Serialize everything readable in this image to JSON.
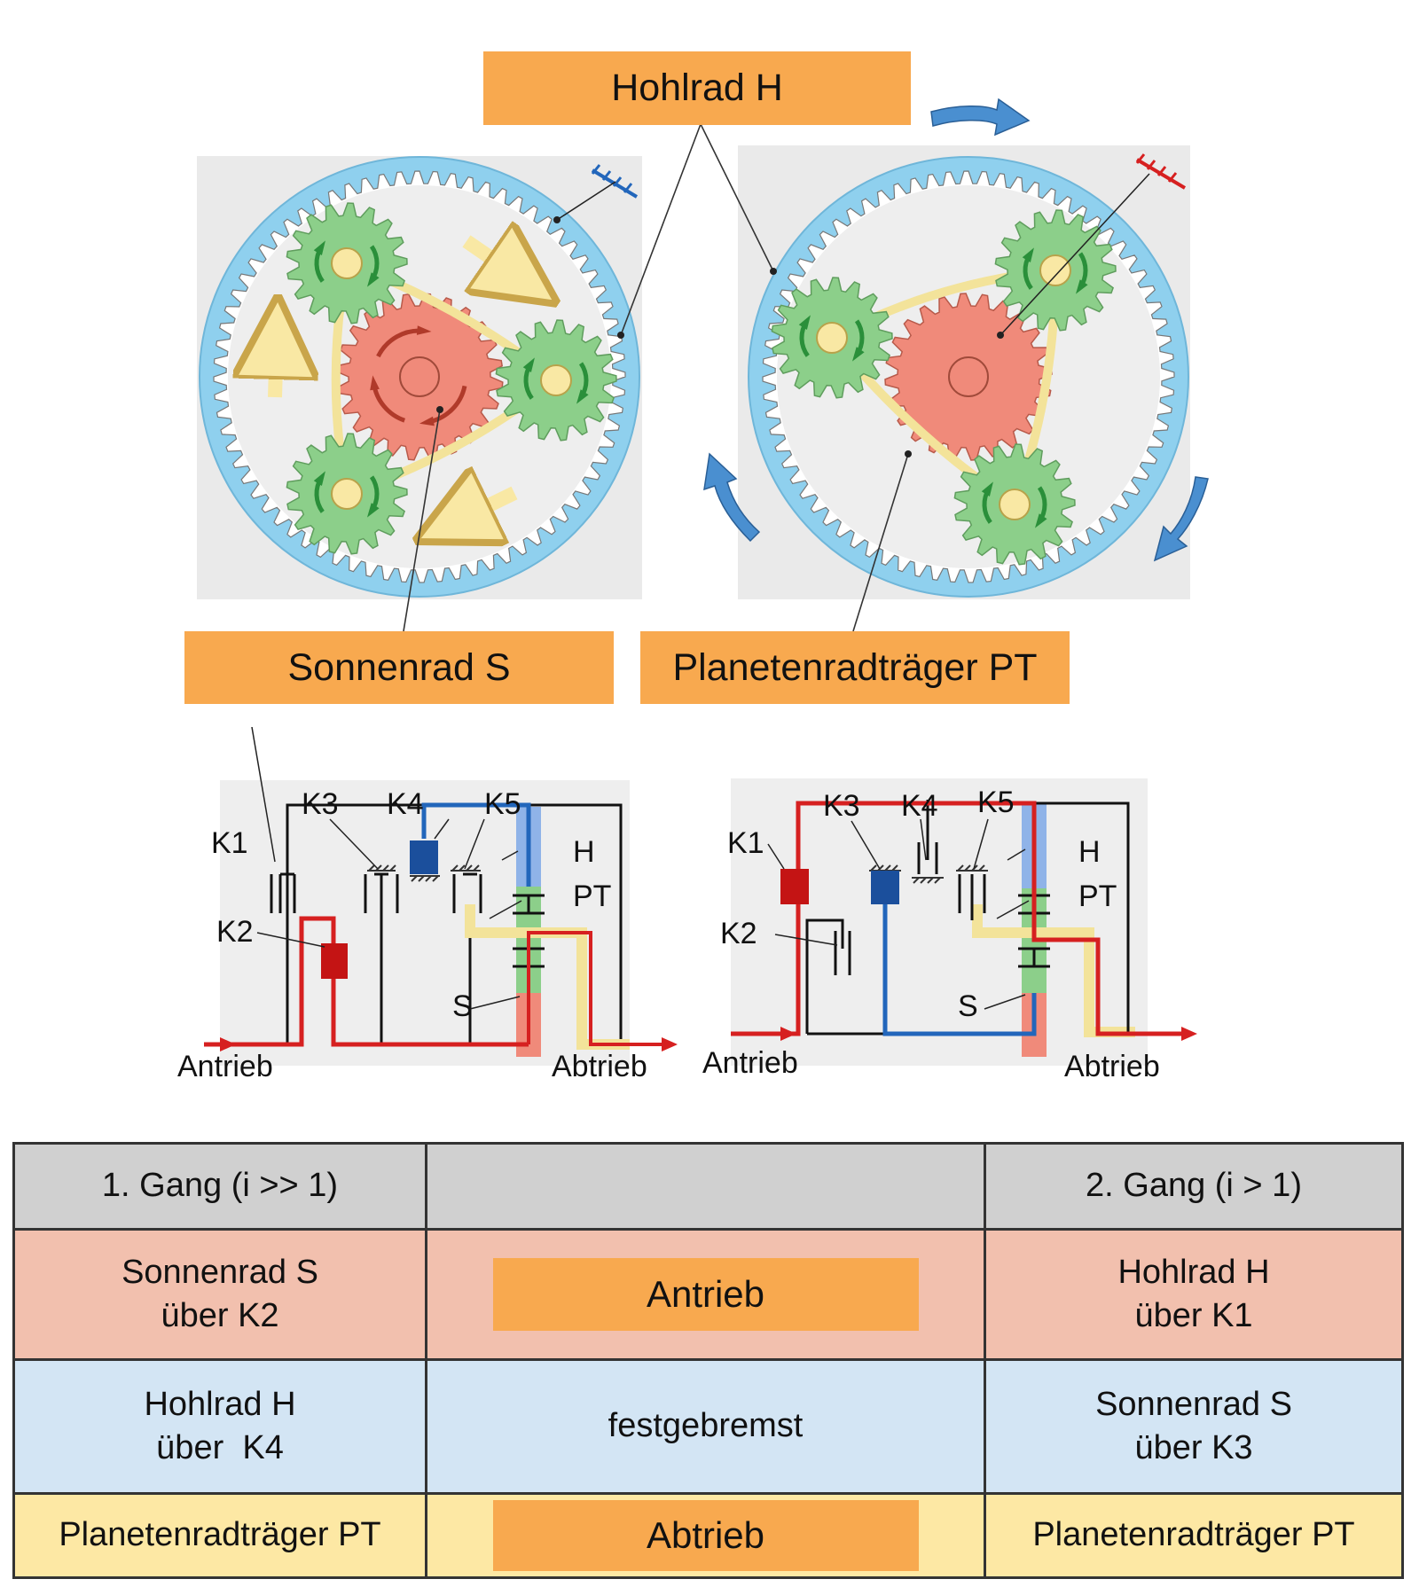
{
  "labels": {
    "hohlrad": "Hohlrad H",
    "sonnenrad": "Sonnenrad S",
    "planetentraeger": "Planetenradträger PT"
  },
  "schema_left": {
    "k1": "K1",
    "k2": "K2",
    "k3": "K3",
    "k4": "K4",
    "k5": "K5",
    "h": "H",
    "pt": "PT",
    "s": "S",
    "antrieb": "Antrieb",
    "abtrieb": "Abtrieb"
  },
  "schema_right": {
    "k1": "K1",
    "k2": "K2",
    "k3": "K3",
    "k4": "K4",
    "k5": "K5",
    "h": "H",
    "pt": "PT",
    "s": "S",
    "antrieb": "Antrieb",
    "abtrieb": "Abtrieb"
  },
  "table": {
    "header": [
      "1. Gang (i >> 1)",
      "",
      "2. Gang (i > 1)"
    ],
    "row_antrieb": {
      "left_line1": "Sonnenrad S",
      "left_line2": "über K2",
      "middle": "Antrieb",
      "right_line1": "Hohlrad H",
      "right_line2": "über K1"
    },
    "row_brake": {
      "left_line1": "Hohlrad H",
      "left_line2": "über  K4",
      "middle": "festgebremst",
      "right_line1": "Sonnenrad S",
      "right_line2": "über K3"
    },
    "row_abtrieb": {
      "left": "Planetenradträger PT",
      "middle": "Abtrieb",
      "right": "Planetenradträger PT"
    }
  },
  "colors": {
    "orange_label": "#f8a94f",
    "ring_blue": "#8fd0ee",
    "sun_red": "#f08a7a",
    "planet_green": "#8ccf8a",
    "carrier_yellow": "#f3e39a",
    "arrow_yellow": "#f9e8a4",
    "arrow_blue": "#4a8fd0",
    "path_red": "#d62020",
    "path_blue": "#2266bb"
  }
}
